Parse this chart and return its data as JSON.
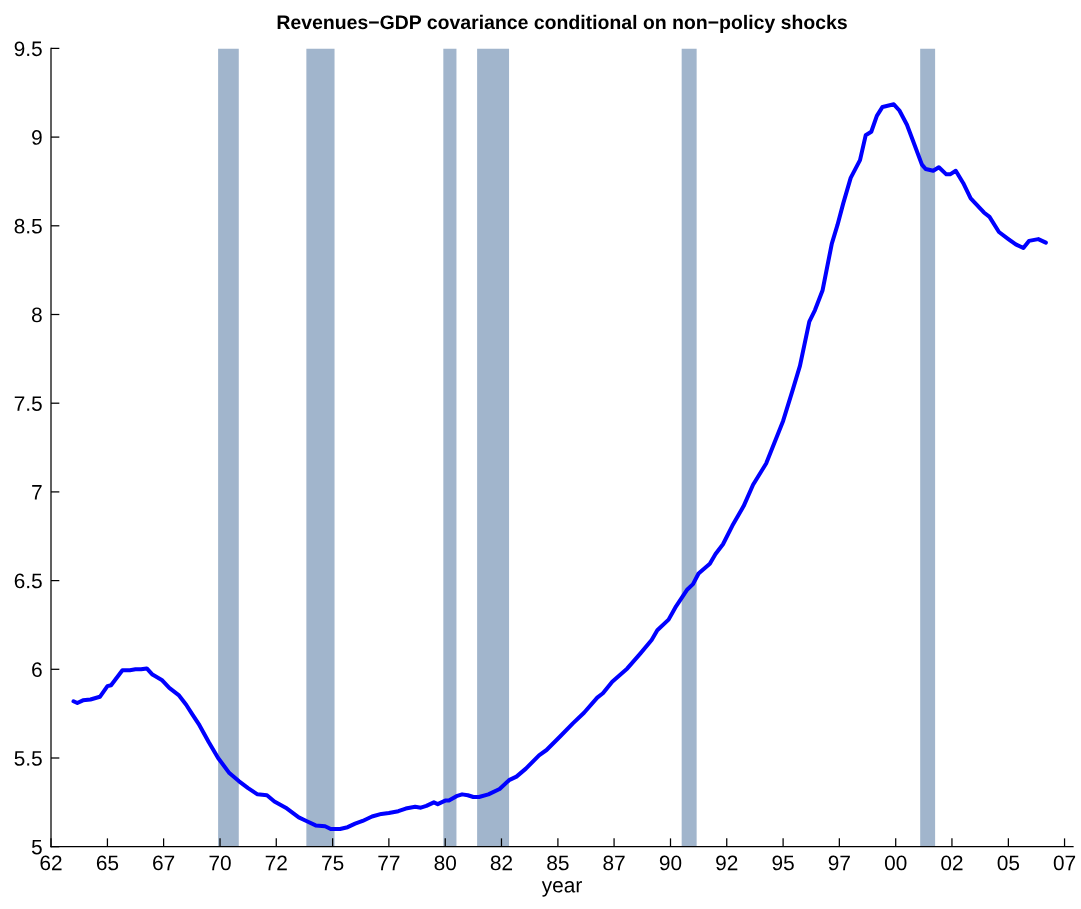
{
  "chart_data": {
    "type": "line",
    "title": "Revenues−GDP covariance conditional on non−policy shocks",
    "xlabel": "year",
    "x": [
      "1963-07",
      "1963-09",
      "1963-12",
      "1964-04",
      "1964-09",
      "1965-01",
      "1965-03",
      "1965-09",
      "1966-01",
      "1966-04",
      "1966-07",
      "1966-10",
      "1967-01",
      "1967-06",
      "1967-10",
      "1968-03",
      "1968-07",
      "1968-10",
      "1969-02",
      "1969-07",
      "1969-12",
      "1970-06",
      "1970-11",
      "1971-04",
      "1971-09",
      "1972-02",
      "1972-06",
      "1972-12",
      "1973-07",
      "1973-11",
      "1974-04",
      "1974-09",
      "1974-12",
      "1975-05",
      "1975-09",
      "1976-01",
      "1976-05",
      "1976-10",
      "1977-03",
      "1977-07",
      "1977-12",
      "1978-04",
      "1978-09",
      "1978-12",
      "1979-03",
      "1979-07",
      "1979-09",
      "1980-01",
      "1980-03",
      "1980-07",
      "1980-10",
      "1981-01",
      "1981-04",
      "1981-07",
      "1981-12",
      "1982-06",
      "1982-11",
      "1983-03",
      "1983-08",
      "1984-03",
      "1984-07",
      "1985-02",
      "1985-09",
      "1986-03",
      "1986-10",
      "1987-01",
      "1987-06",
      "1988-02",
      "1988-09",
      "1989-03",
      "1989-06",
      "1989-12",
      "1990-04",
      "1990-10",
      "1991-01",
      "1991-04",
      "1991-10",
      "1992-01",
      "1992-05",
      "1992-10",
      "1993-04",
      "1993-09",
      "1994-04",
      "1995-01",
      "1995-06",
      "1995-10",
      "1996-03",
      "1996-06",
      "1996-10",
      "1997-03",
      "1997-06",
      "1997-09",
      "1998-01",
      "1998-06",
      "1998-09",
      "1998-12",
      "1999-03",
      "1999-06",
      "1999-12",
      "2000-03",
      "2000-07",
      "2000-10",
      "2001-03",
      "2001-05",
      "2001-09",
      "2001-12",
      "2002-04",
      "2002-06",
      "2002-09",
      "2003-01",
      "2003-05",
      "2003-12",
      "2004-03",
      "2004-08",
      "2005-01",
      "2005-05",
      "2005-09",
      "2005-12",
      "2006-05",
      "2006-09"
    ],
    "series": [
      {
        "color": "#0000ff",
        "values": [
          5.82,
          5.81,
          5.825,
          5.83,
          5.845,
          5.905,
          5.91,
          5.995,
          5.995,
          6.0,
          6.0,
          6.005,
          5.97,
          5.94,
          5.895,
          5.855,
          5.8,
          5.75,
          5.685,
          5.59,
          5.5,
          5.415,
          5.37,
          5.33,
          5.295,
          5.29,
          5.255,
          5.22,
          5.165,
          5.145,
          5.12,
          5.115,
          5.1,
          5.1,
          5.11,
          5.13,
          5.145,
          5.17,
          5.185,
          5.19,
          5.2,
          5.215,
          5.225,
          5.22,
          5.23,
          5.25,
          5.24,
          5.26,
          5.26,
          5.285,
          5.295,
          5.29,
          5.28,
          5.28,
          5.295,
          5.325,
          5.375,
          5.395,
          5.44,
          5.515,
          5.545,
          5.62,
          5.695,
          5.755,
          5.84,
          5.865,
          5.93,
          6.005,
          6.09,
          6.165,
          6.22,
          6.28,
          6.355,
          6.45,
          6.48,
          6.54,
          6.595,
          6.65,
          6.705,
          6.81,
          6.92,
          7.04,
          7.16,
          7.4,
          7.57,
          7.71,
          7.96,
          8.025,
          8.135,
          8.4,
          8.505,
          8.625,
          8.77,
          8.87,
          9.01,
          9.03,
          9.12,
          9.17,
          9.185,
          9.15,
          9.07,
          8.985,
          8.845,
          8.82,
          8.81,
          8.83,
          8.79,
          8.79,
          8.81,
          8.74,
          8.655,
          8.575,
          8.55,
          8.465,
          8.425,
          8.395,
          8.375,
          8.415,
          8.425,
          8.405
        ]
      }
    ],
    "xlim": [
      "1962-07",
      "2007-11-15"
    ],
    "ylim": [
      5,
      9.5
    ],
    "xticks": [
      {
        "value": "1962-07",
        "label": "62"
      },
      {
        "value": "1965-01",
        "label": "65"
      },
      {
        "value": "1967-07",
        "label": "67"
      },
      {
        "value": "1970-01",
        "label": "70"
      },
      {
        "value": "1972-07",
        "label": "72"
      },
      {
        "value": "1975-01",
        "label": "75"
      },
      {
        "value": "1977-07",
        "label": "77"
      },
      {
        "value": "1980-01",
        "label": "80"
      },
      {
        "value": "1982-07",
        "label": "82"
      },
      {
        "value": "1985-01",
        "label": "85"
      },
      {
        "value": "1987-07",
        "label": "87"
      },
      {
        "value": "1990-01",
        "label": "90"
      },
      {
        "value": "1992-07",
        "label": "92"
      },
      {
        "value": "1995-01",
        "label": "95"
      },
      {
        "value": "1997-07",
        "label": "97"
      },
      {
        "value": "2000-01",
        "label": "00"
      },
      {
        "value": "2002-07",
        "label": "02"
      },
      {
        "value": "2005-01",
        "label": "05"
      },
      {
        "value": "2007-07",
        "label": "07"
      }
    ],
    "yticks": [
      5,
      5.5,
      6,
      6.5,
      7,
      7.5,
      8,
      8.5,
      9,
      9.5
    ],
    "bands": [
      {
        "axis": "x",
        "from": "1969-12",
        "to": "1970-11",
        "color": "#a1b5cc"
      },
      {
        "axis": "x",
        "from": "1973-11",
        "to": "1975-02",
        "color": "#a1b5cc"
      },
      {
        "axis": "x",
        "from": "1979-12",
        "to": "1980-07",
        "color": "#a1b5cc"
      },
      {
        "axis": "x",
        "from": "1981-06",
        "to": "1982-11",
        "color": "#a1b5cc"
      },
      {
        "axis": "x",
        "from": "1990-07",
        "to": "1991-03",
        "color": "#a1b5cc"
      },
      {
        "axis": "x",
        "from": "2001-02",
        "to": "2001-10",
        "color": "#a1b5cc"
      }
    ]
  }
}
